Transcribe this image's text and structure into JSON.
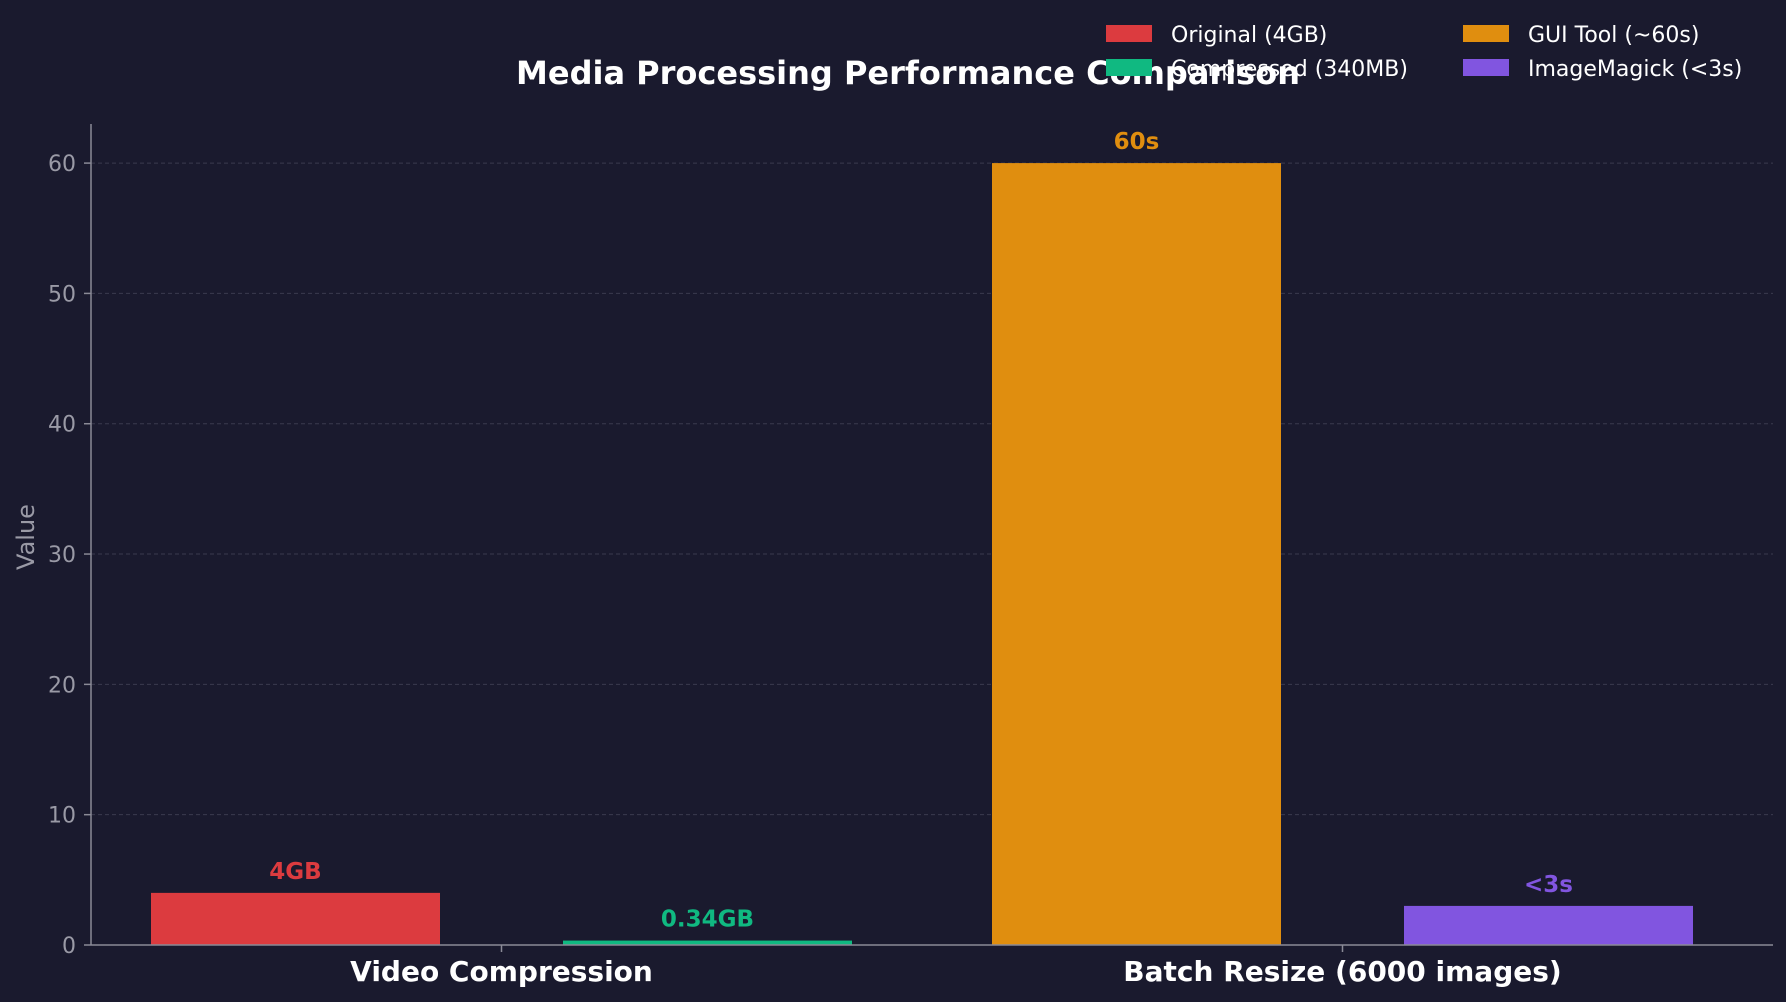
{
  "chart_data": {
    "type": "bar",
    "title": "Media Processing Performance Comparison",
    "xlabel": "",
    "ylabel": "Value",
    "ylim": [
      0,
      63
    ],
    "yticks": [
      0,
      10,
      20,
      30,
      40,
      50,
      60
    ],
    "grid": true,
    "legend_position": "top-right",
    "categories": [
      "Video Compression",
      "Batch Resize (6000 images)"
    ],
    "bars": [
      {
        "series": "Original (4GB)",
        "category": "Video Compression",
        "value": 4,
        "label": "4GB",
        "color": "#dc3b3f"
      },
      {
        "series": "Compressed (340MB)",
        "category": "Video Compression",
        "value": 0.34,
        "label": "0.34GB",
        "color": "#10b981"
      },
      {
        "series": "GUI Tool (~60s)",
        "category": "Batch Resize (6000 images)",
        "value": 60,
        "label": "60s",
        "color": "#e08e0f"
      },
      {
        "series": "ImageMagick (<3s)",
        "category": "Batch Resize (6000 images)",
        "value": 3,
        "label": "<3s",
        "color": "#8155e0"
      }
    ],
    "legend": [
      {
        "name": "Original (4GB)",
        "color": "#dc3b3f"
      },
      {
        "name": "Compressed (340MB)",
        "color": "#10b981"
      },
      {
        "name": "GUI Tool (~60s)",
        "color": "#e08e0f"
      },
      {
        "name": "ImageMagick (<3s)",
        "color": "#8155e0"
      }
    ]
  },
  "colors": {
    "background": "#1a1a2e",
    "text": "#ffffff",
    "tick_text": "#9a9aa6",
    "axis": "#8a8a96",
    "grid": "#3a3a4e"
  }
}
